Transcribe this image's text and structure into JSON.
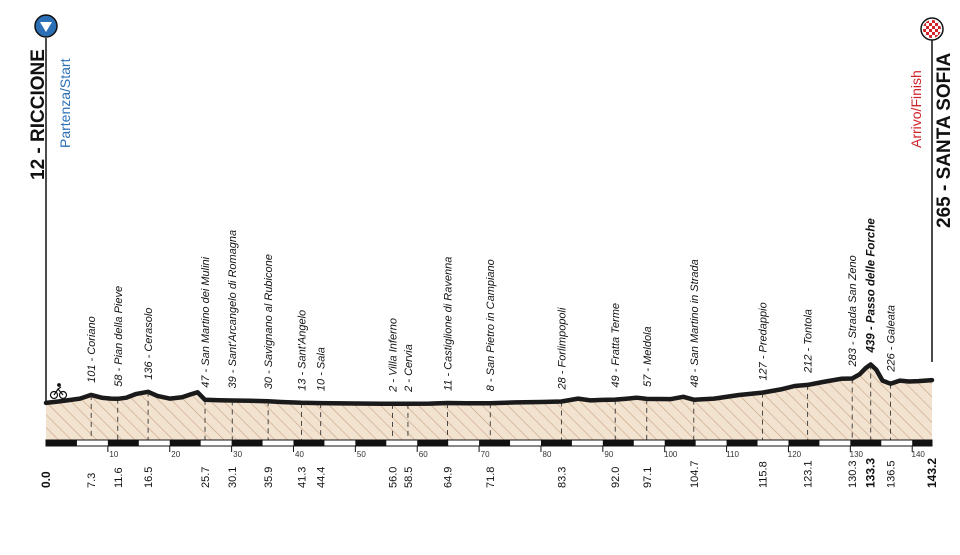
{
  "start": {
    "name": "12 - RICCIONE",
    "label": "Partenza/Start",
    "icon": "start-arrow-icon"
  },
  "finish": {
    "name": "265 - SANTA SOFIA",
    "label": "Arrivo/Finish",
    "icon": "finish-flag-icon"
  },
  "colors": {
    "profile_fill": "#f2e2d0",
    "hatch": "#c9a483",
    "profile_line": "#1a1a1a",
    "start_blue": "#2b6fb6",
    "finish_red": "#d2232a"
  },
  "chart_data": {
    "type": "area",
    "title": "",
    "xlabel": "",
    "ylabel": "",
    "xlim": [
      0,
      143.2
    ],
    "x_ticks": [
      10,
      20,
      30,
      40,
      50,
      60,
      70,
      80,
      90,
      100,
      110,
      120,
      130,
      140
    ],
    "profile": [
      [
        0,
        12
      ],
      [
        2,
        28
      ],
      [
        4,
        45
      ],
      [
        5.5,
        60
      ],
      [
        7.3,
        101
      ],
      [
        9,
        70
      ],
      [
        10.5,
        60
      ],
      [
        11.6,
        58
      ],
      [
        13,
        70
      ],
      [
        14.5,
        110
      ],
      [
        16.5,
        136
      ],
      [
        18,
        90
      ],
      [
        20,
        60
      ],
      [
        22,
        75
      ],
      [
        23.5,
        110
      ],
      [
        24.5,
        130
      ],
      [
        25.7,
        47
      ],
      [
        28,
        42
      ],
      [
        30.1,
        39
      ],
      [
        33,
        36
      ],
      [
        35.9,
        30
      ],
      [
        38,
        22
      ],
      [
        41.3,
        13
      ],
      [
        44.4,
        10
      ],
      [
        50,
        6
      ],
      [
        56,
        2
      ],
      [
        58.5,
        2
      ],
      [
        62,
        5
      ],
      [
        64.9,
        11
      ],
      [
        68,
        9
      ],
      [
        71.8,
        8
      ],
      [
        76,
        18
      ],
      [
        80,
        22
      ],
      [
        83.3,
        28
      ],
      [
        86,
        60
      ],
      [
        88,
        40
      ],
      [
        90,
        45
      ],
      [
        92,
        49
      ],
      [
        94,
        60
      ],
      [
        95.5,
        70
      ],
      [
        97.1,
        57
      ],
      [
        101,
        55
      ],
      [
        103,
        80
      ],
      [
        104.7,
        48
      ],
      [
        108,
        60
      ],
      [
        112,
        100
      ],
      [
        115.8,
        127
      ],
      [
        119,
        165
      ],
      [
        121,
        200
      ],
      [
        123.1,
        212
      ],
      [
        126,
        250
      ],
      [
        128.5,
        280
      ],
      [
        130.3,
        283
      ],
      [
        131.5,
        330
      ],
      [
        132.5,
        400
      ],
      [
        133.3,
        439
      ],
      [
        134.2,
        380
      ],
      [
        135.2,
        260
      ],
      [
        136.5,
        226
      ],
      [
        138,
        260
      ],
      [
        139.5,
        250
      ],
      [
        141,
        255
      ],
      [
        143.2,
        265
      ]
    ],
    "waypoints": [
      {
        "km": 0.0,
        "label": "",
        "km_label": "0.0",
        "bold": true
      },
      {
        "km": 7.3,
        "label": "101 - Coriano",
        "km_label": "7.3",
        "bold": false
      },
      {
        "km": 11.6,
        "label": "58 - Pian della Pieve",
        "km_label": "11.6",
        "bold": false
      },
      {
        "km": 16.5,
        "label": "136 - Cerasolo",
        "km_label": "16.5",
        "bold": false
      },
      {
        "km": 25.7,
        "label": "47 - San Martino dei Mulini",
        "km_label": "25.7",
        "bold": false
      },
      {
        "km": 30.1,
        "label": "39 - Sant'Arcangelo di Romagna",
        "km_label": "30.1",
        "bold": false
      },
      {
        "km": 35.9,
        "label": "30 - Savignano al Rubicone",
        "km_label": "35.9",
        "bold": false
      },
      {
        "km": 41.3,
        "label": "13 - Sant'Angelo",
        "km_label": "41.3",
        "bold": false
      },
      {
        "km": 44.4,
        "label": "10 - Sala",
        "km_label": "44.4",
        "bold": false
      },
      {
        "km": 56.0,
        "label": "2 - Villa Inferno",
        "km_label": "56.0",
        "bold": false
      },
      {
        "km": 58.5,
        "label": "2 - Cervia",
        "km_label": "58.5",
        "bold": false
      },
      {
        "km": 64.9,
        "label": "11 - Castiglione di Ravenna",
        "km_label": "64.9",
        "bold": false
      },
      {
        "km": 71.8,
        "label": "8 - San Pietro in Campiano",
        "km_label": "71.8",
        "bold": false
      },
      {
        "km": 83.3,
        "label": "28 - Forlimpopoli",
        "km_label": "83.3",
        "bold": false
      },
      {
        "km": 92.0,
        "label": "49 - Fratta Terme",
        "km_label": "92.0",
        "bold": false
      },
      {
        "km": 97.1,
        "label": "57 - Meldola",
        "km_label": "97.1",
        "bold": false
      },
      {
        "km": 104.7,
        "label": "48 - San Martino in Strada",
        "km_label": "104.7",
        "bold": false
      },
      {
        "km": 115.8,
        "label": "127 - Predappio",
        "km_label": "115.8",
        "bold": false
      },
      {
        "km": 123.1,
        "label": "212 - Tontola",
        "km_label": "123.1",
        "bold": false
      },
      {
        "km": 130.3,
        "label": "283 - Strada San Zeno",
        "km_label": "130.3",
        "bold": false
      },
      {
        "km": 133.3,
        "label": "439 - Passo delle Forche",
        "km_label": "133.3",
        "bold": true
      },
      {
        "km": 136.5,
        "label": "226 - Galeata",
        "km_label": "136.5",
        "bold": false
      },
      {
        "km": 143.2,
        "label": "",
        "km_label": "143.2",
        "bold": true
      }
    ],
    "grid": false,
    "legend": "none"
  }
}
